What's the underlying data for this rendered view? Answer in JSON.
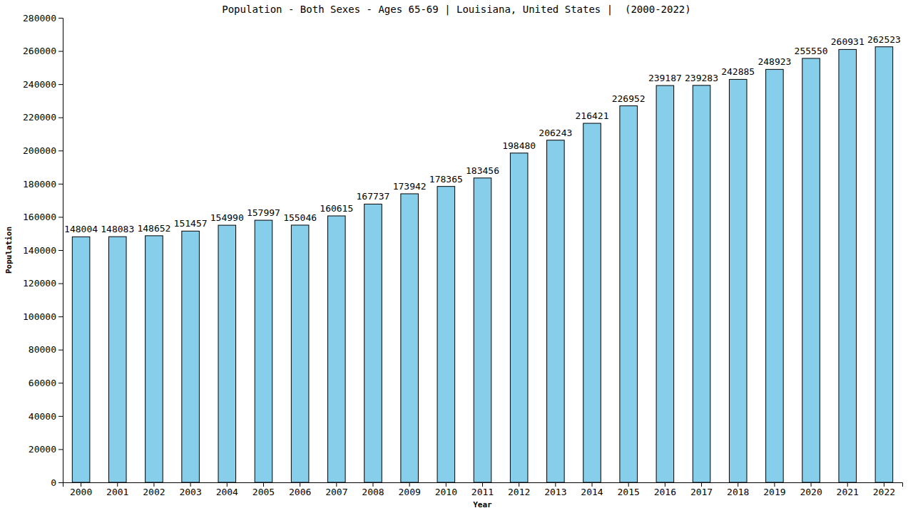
{
  "chart_data": {
    "type": "bar",
    "title": "Population - Both Sexes - Ages 65-69 | Louisiana, United States |  (2000-2022)",
    "x_label": "Year",
    "y_label": "Population",
    "categories": [
      "2000",
      "2001",
      "2002",
      "2003",
      "2004",
      "2005",
      "2006",
      "2007",
      "2008",
      "2009",
      "2010",
      "2011",
      "2012",
      "2013",
      "2014",
      "2015",
      "2016",
      "2017",
      "2018",
      "2019",
      "2020",
      "2021",
      "2022"
    ],
    "values": [
      148004,
      148083,
      148652,
      151457,
      154990,
      157997,
      155046,
      160615,
      167737,
      173942,
      178365,
      183456,
      198480,
      206243,
      216421,
      226952,
      239187,
      239283,
      242885,
      248923,
      255550,
      260931,
      262523
    ],
    "color": "#87ceeb",
    "ylim": [
      0,
      280000
    ],
    "yticks": [
      0,
      20000,
      40000,
      60000,
      80000,
      100000,
      120000,
      140000,
      160000,
      180000,
      200000,
      220000,
      240000,
      260000,
      280000
    ],
    "grid": false,
    "data_labels": true
  }
}
